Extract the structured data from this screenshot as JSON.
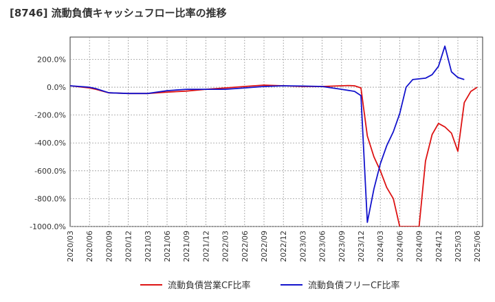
{
  "chart_data": {
    "type": "line",
    "title": "[8746]  流動負債キャッシュフロー比率の推移",
    "xlabel": "",
    "ylabel": "",
    "categories": [
      "2020/03",
      "2020/06",
      "2020/09",
      "2020/12",
      "2021/03",
      "2021/06",
      "2021/09",
      "2021/12",
      "2022/03",
      "2022/06",
      "2022/09",
      "2022/12",
      "2023/03",
      "2023/06",
      "2023/09",
      "2023/12",
      "2024/03",
      "2024/06",
      "2024/09",
      "2024/12",
      "2025/03",
      "2025/06"
    ],
    "ylim": [
      -1000,
      360
    ],
    "yticks": [
      200,
      0,
      -200,
      -400,
      -600,
      -800,
      -1000
    ],
    "ytick_labels": [
      "200.0%",
      "0.0%",
      "-200.0%",
      "-400.0%",
      "-600.0%",
      "-800.0%",
      "-1000.0%"
    ],
    "grid": true,
    "legend_position": "bottom",
    "series": [
      {
        "name": "流動負債営業CF比率",
        "color": "#dd1111",
        "points": [
          [
            0,
            10
          ],
          [
            0.33,
            5
          ],
          [
            0.67,
            0
          ],
          [
            1,
            -5
          ],
          [
            1.33,
            -15
          ],
          [
            2,
            -40
          ],
          [
            3,
            -45
          ],
          [
            4,
            -45
          ],
          [
            5,
            -35
          ],
          [
            6,
            -28
          ],
          [
            7,
            -15
          ],
          [
            8,
            -5
          ],
          [
            9,
            5
          ],
          [
            10,
            15
          ],
          [
            11,
            10
          ],
          [
            12,
            5
          ],
          [
            13,
            5
          ],
          [
            14,
            10
          ],
          [
            14.33,
            12
          ],
          [
            14.67,
            10
          ],
          [
            15,
            -5
          ],
          [
            15.33,
            -350
          ],
          [
            15.67,
            -500
          ],
          [
            16,
            -600
          ],
          [
            16.33,
            -720
          ],
          [
            16.67,
            -800
          ],
          [
            17,
            -1000
          ],
          [
            18,
            -1000
          ],
          [
            18.33,
            -530
          ],
          [
            18.67,
            -340
          ],
          [
            19,
            -260
          ],
          [
            19.33,
            -285
          ],
          [
            19.67,
            -330
          ],
          [
            20,
            -460
          ],
          [
            20.33,
            -110
          ],
          [
            20.67,
            -30
          ],
          [
            21,
            0
          ]
        ]
      },
      {
        "name": "流動負債フリーCF比率",
        "color": "#1111cc",
        "points": [
          [
            0,
            10
          ],
          [
            1,
            0
          ],
          [
            1.33,
            -10
          ],
          [
            2,
            -40
          ],
          [
            3,
            -45
          ],
          [
            4,
            -45
          ],
          [
            5,
            -25
          ],
          [
            6,
            -15
          ],
          [
            7,
            -15
          ],
          [
            8,
            -15
          ],
          [
            9,
            -5
          ],
          [
            10,
            5
          ],
          [
            11,
            10
          ],
          [
            12,
            8
          ],
          [
            13,
            5
          ],
          [
            14,
            -15
          ],
          [
            14.67,
            -30
          ],
          [
            15,
            -60
          ],
          [
            15.33,
            -970
          ],
          [
            15.67,
            -730
          ],
          [
            16,
            -550
          ],
          [
            16.33,
            -420
          ],
          [
            16.67,
            -320
          ],
          [
            17,
            -190
          ],
          [
            17.33,
            0
          ],
          [
            17.67,
            55
          ],
          [
            18,
            60
          ],
          [
            18.33,
            65
          ],
          [
            18.67,
            90
          ],
          [
            19,
            150
          ],
          [
            19.33,
            295
          ],
          [
            19.67,
            110
          ],
          [
            20,
            70
          ],
          [
            20.33,
            55
          ]
        ]
      }
    ]
  }
}
